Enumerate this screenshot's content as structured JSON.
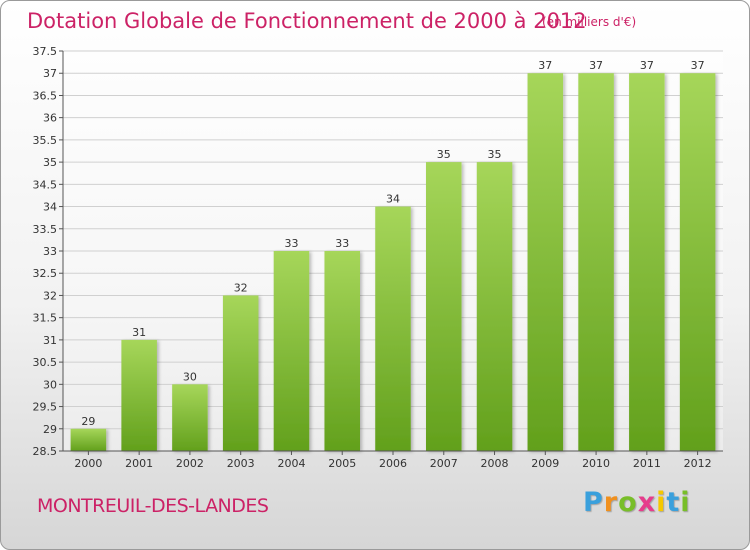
{
  "title": "Dotation Globale de Fonctionnement de 2000 à 2012",
  "subtitle": "(en milliers d'€)",
  "commune": "MONTREUIL-DES-LANDES",
  "brand": {
    "text": "Proxiti",
    "letters": [
      "P",
      "r",
      "o",
      "x",
      "i",
      "t",
      "i"
    ],
    "colors": [
      "#3aa0dc",
      "#f0901e",
      "#78be28",
      "#e63c8c",
      "#f5c800",
      "#3aa0dc",
      "#78be28"
    ]
  },
  "colors": {
    "accent": "#cc2266",
    "bar_top": "#a6d65a",
    "bar_bottom": "#62a01c",
    "grid": "#d0d0d0",
    "axis": "#555555"
  },
  "chart_data": {
    "type": "bar",
    "categories": [
      "2000",
      "2001",
      "2002",
      "2003",
      "2004",
      "2005",
      "2006",
      "2007",
      "2008",
      "2009",
      "2010",
      "2011",
      "2012"
    ],
    "values": [
      29,
      31,
      30,
      32,
      33,
      33,
      34,
      35,
      35,
      37,
      37,
      37,
      37
    ],
    "value_labels": [
      "29",
      "31",
      "30",
      "32",
      "33",
      "33",
      "34",
      "35",
      "35",
      "37",
      "37",
      "37",
      "37"
    ],
    "yticks": [
      "28.5",
      "29",
      "29.5",
      "30",
      "30.5",
      "31",
      "31.5",
      "32",
      "32.5",
      "33",
      "33.5",
      "34",
      "34.5",
      "35",
      "35.5",
      "36",
      "36.5",
      "37",
      "37.5"
    ],
    "title": "Dotation Globale de Fonctionnement de 2000 à 2012",
    "subtitle": "(en milliers d'€)",
    "xlabel": "",
    "ylabel": "",
    "ylim": [
      28.5,
      37.5
    ],
    "grid": true
  }
}
